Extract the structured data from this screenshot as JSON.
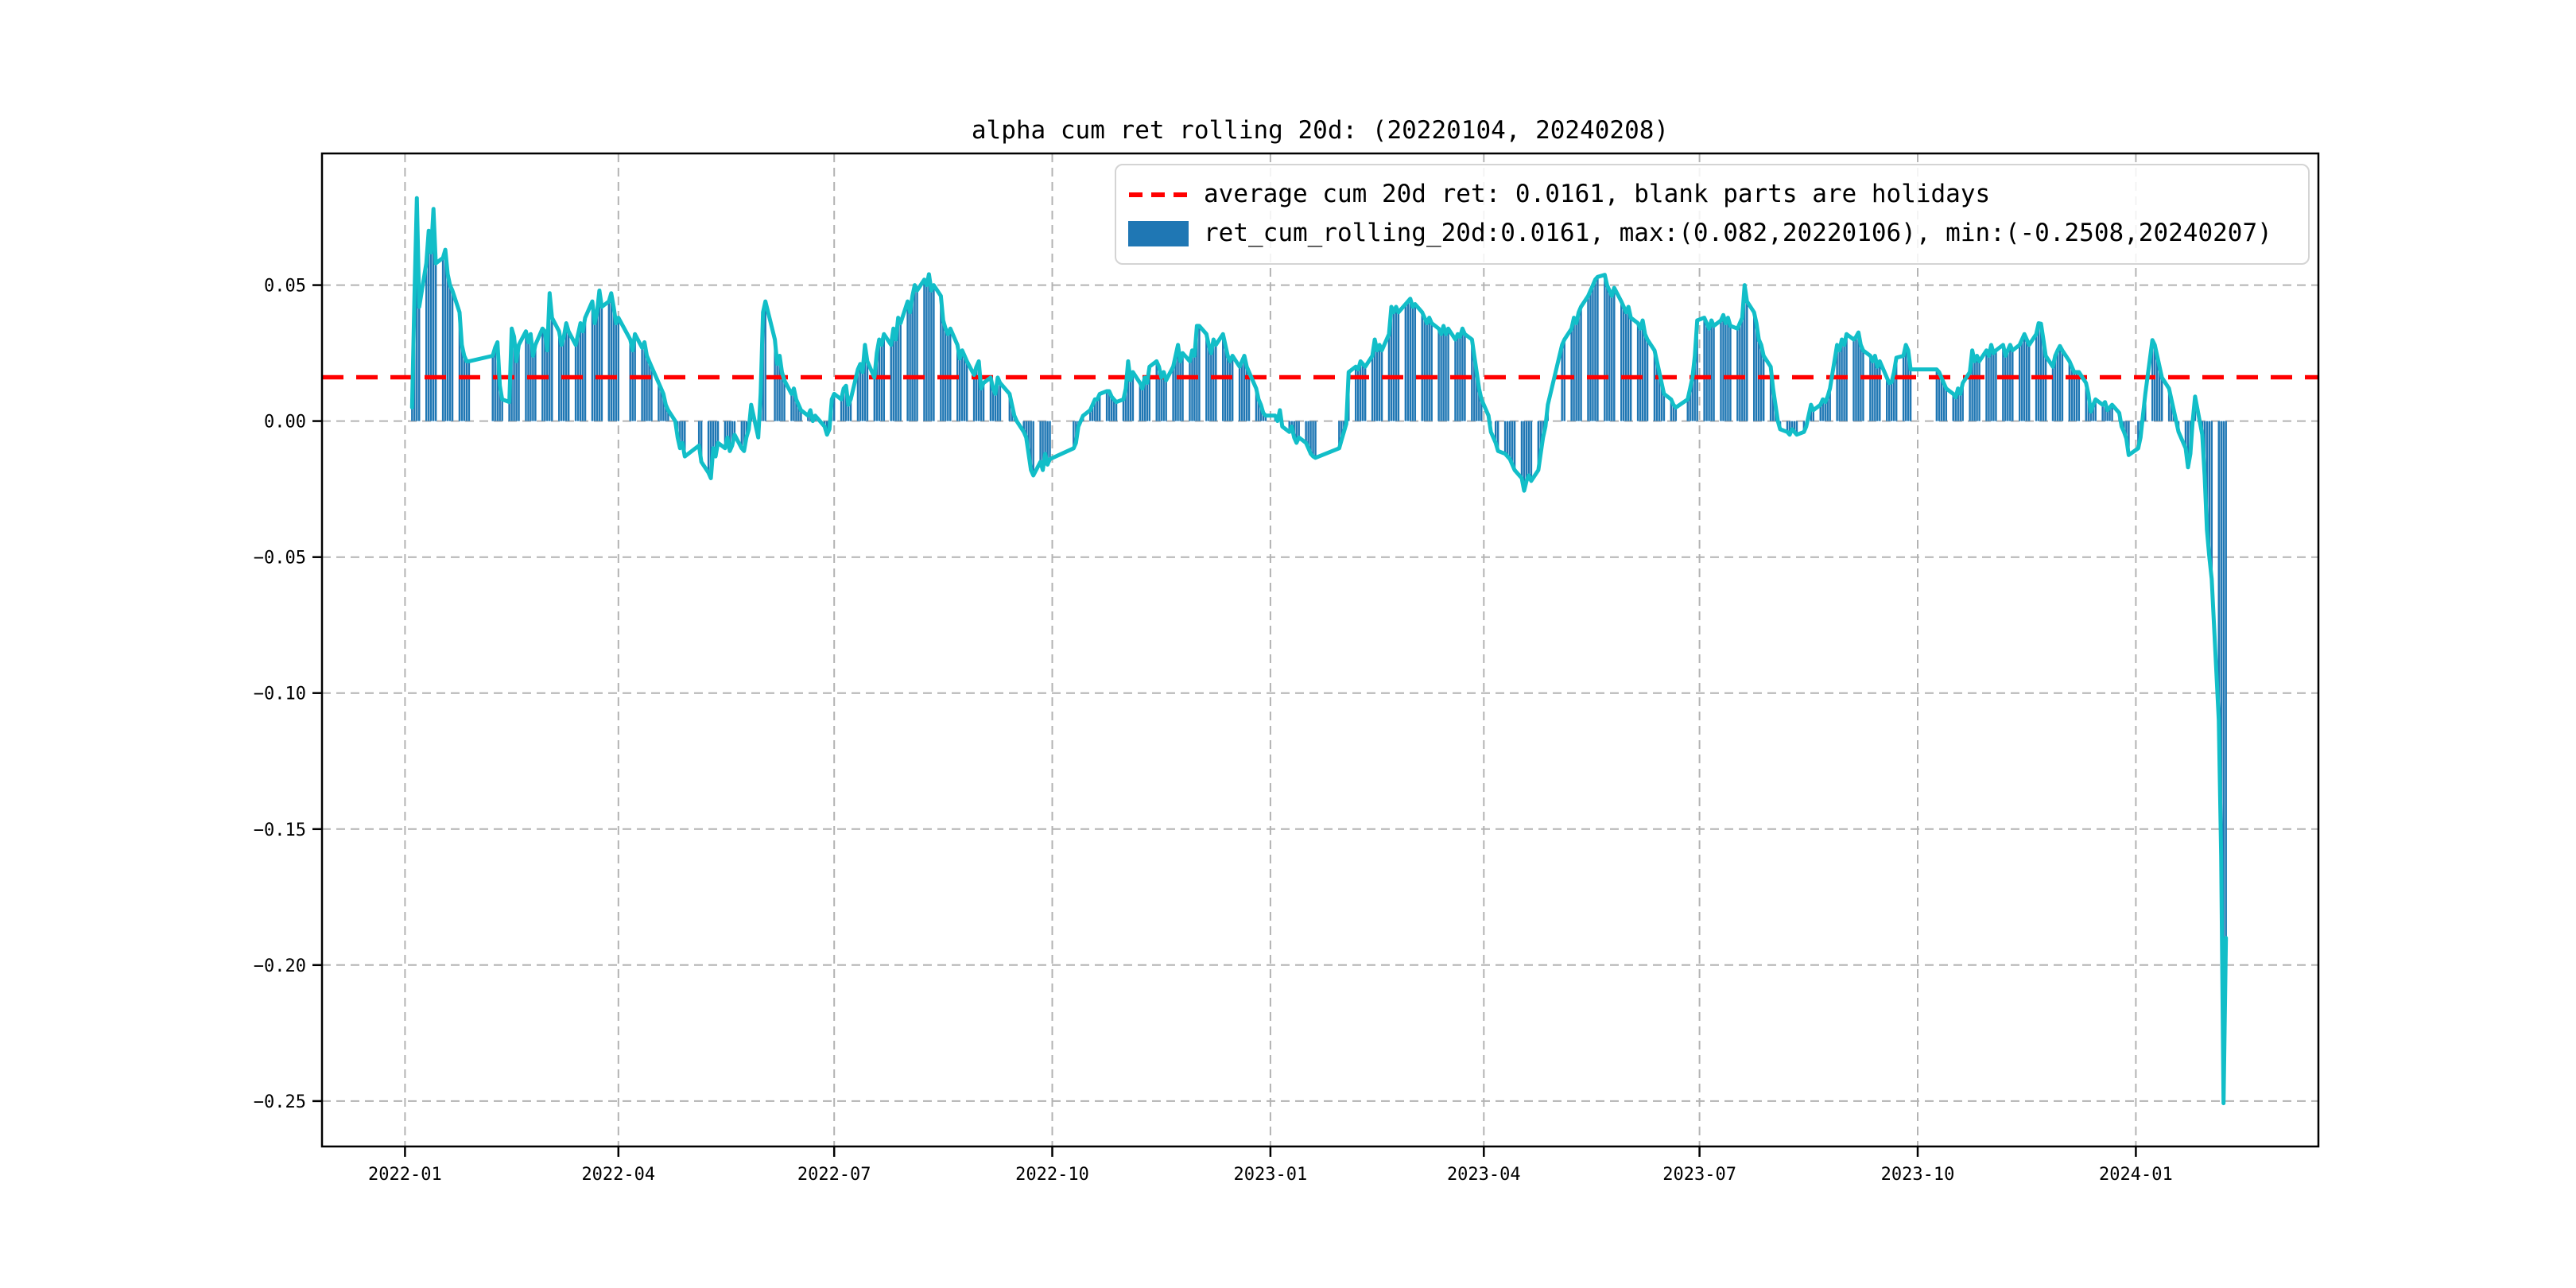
{
  "chart_data": {
    "type": "bar",
    "overlay": "line",
    "title": "alpha cum ret rolling 20d: (20220104, 20240208)",
    "legend_position": "upper right",
    "legend": [
      {
        "label": "average cum 20d ret: 0.0161, blank parts are holidays",
        "marker": "red-dashed-line",
        "color": "#ff0000"
      },
      {
        "label": "ret_cum_rolling_20d:0.0161, max:(0.082,20220106), min:(-0.2508,20240207)",
        "marker": "blue-bar",
        "color": "#1f77b4"
      }
    ],
    "series_name": "ret_cum_rolling_20d",
    "average_line": 0.0161,
    "stats": {
      "average": 0.0161,
      "max": {
        "value": 0.082,
        "date": "20220106"
      },
      "min": {
        "value": -0.2508,
        "date": "20240207"
      }
    },
    "date_range": {
      "start": "20220104",
      "end": "20240208"
    },
    "grid": true,
    "colors": {
      "bar": "#1f77b4",
      "line": "#12bec8",
      "average": "#ff0000",
      "grid": "#b3b3b3",
      "spine": "#000000"
    },
    "y_tick_labels": [
      "0.05",
      "0.00",
      "−0.05",
      "−0.10",
      "−0.15",
      "−0.20",
      "−0.25"
    ],
    "y_tick_values": [
      0.05,
      0.0,
      -0.05,
      -0.1,
      -0.15,
      -0.2,
      -0.25
    ],
    "x_tick_labels": [
      "2022-01",
      "2022-04",
      "2022-07",
      "2022-10",
      "2023-01",
      "2023-04",
      "2023-07",
      "2023-10",
      "2024-01"
    ],
    "x_tick_dates": [
      "2022-01-01",
      "2022-04-01",
      "2022-07-01",
      "2022-10-01",
      "2023-01-01",
      "2023-04-01",
      "2023-07-01",
      "2023-10-01",
      "2024-01-01"
    ],
    "y_range": [
      -0.2667,
      0.0984
    ],
    "x_range": [
      "2021-11-27",
      "2024-03-18"
    ],
    "trading": {
      "start": "2022-01-04",
      "end": "2024-02-08",
      "holidays": [
        "2022-01-31",
        "2022-02-01",
        "2022-02-02",
        "2022-02-03",
        "2022-02-04",
        "2022-04-04",
        "2022-04-05",
        "2022-05-02",
        "2022-05-03",
        "2022-05-04",
        "2022-06-03",
        "2022-09-12",
        "2022-10-03",
        "2022-10-04",
        "2022-10-05",
        "2022-10-06",
        "2022-10-07",
        "2023-01-02",
        "2023-01-23",
        "2023-01-24",
        "2023-01-25",
        "2023-01-26",
        "2023-01-27",
        "2023-04-05",
        "2023-05-01",
        "2023-05-02",
        "2023-05-03",
        "2023-06-22",
        "2023-06-23",
        "2023-09-29",
        "2023-10-02",
        "2023-10-03",
        "2023-10-04",
        "2023-10-05",
        "2023-10-06",
        "2024-01-01"
      ]
    },
    "series": {
      "2022-01": {
        "04": 0.005,
        "05": 0.046,
        "06": 0.082,
        "07": 0.042,
        "10": 0.058,
        "11": 0.07,
        "12": 0.062,
        "13": 0.078,
        "14": 0.058,
        "17": 0.06,
        "18": 0.063,
        "19": 0.054,
        "20": 0.05,
        "21": 0.048,
        "24": 0.04,
        "25": 0.028,
        "26": 0.024,
        "27": 0.022,
        "28": 0.022
      },
      "2022-02": {
        "07": 0.024,
        "08": 0.027,
        "09": 0.029,
        "10": 0.013,
        "11": 0.008,
        "14": 0.007,
        "15": 0.034,
        "16": 0.031,
        "17": 0.022,
        "18": 0.028,
        "21": 0.033,
        "22": 0.029,
        "23": 0.032,
        "24": 0.024,
        "25": 0.028,
        "28": 0.034
      },
      "2022-03": {
        "01": 0.033,
        "02": 0.026,
        "03": 0.047,
        "04": 0.038,
        "07": 0.033,
        "08": 0.028,
        "09": 0.031,
        "10": 0.036,
        "11": 0.033,
        "14": 0.028,
        "15": 0.032,
        "16": 0.036,
        "17": 0.033,
        "18": 0.038,
        "21": 0.044,
        "22": 0.036,
        "23": 0.04,
        "24": 0.048,
        "25": 0.042,
        "28": 0.044,
        "29": 0.047,
        "30": 0.042,
        "31": 0.036
      },
      "2022-04": {
        "01": 0.038,
        "06": 0.03,
        "07": 0.026,
        "08": 0.032,
        "11": 0.027,
        "12": 0.029,
        "13": 0.024,
        "14": 0.022,
        "15": 0.02,
        "18": 0.014,
        "19": 0.012,
        "20": 0.01,
        "21": 0.006,
        "22": 0.004,
        "25": 0.0,
        "26": -0.006,
        "27": -0.01,
        "28": -0.008,
        "29": -0.013
      },
      "2022-05": {
        "05": -0.009,
        "06": -0.015,
        "09": -0.019,
        "10": -0.021,
        "11": -0.01,
        "12": -0.013,
        "13": -0.008,
        "16": -0.01,
        "17": -0.006,
        "18": -0.011,
        "19": -0.009,
        "20": -0.005,
        "23": -0.01,
        "24": -0.011,
        "25": -0.006,
        "26": -0.003,
        "27": 0.006,
        "30": -0.006,
        "31": 0.01
      },
      "2022-06": {
        "01": 0.04,
        "02": 0.044,
        "06": 0.03,
        "07": 0.021,
        "08": 0.024,
        "09": 0.018,
        "10": 0.015,
        "13": 0.01,
        "14": 0.012,
        "15": 0.008,
        "16": 0.006,
        "17": 0.004,
        "20": 0.002,
        "21": 0.004,
        "22": 0.0,
        "23": 0.002,
        "24": 0.001,
        "27": -0.002,
        "28": -0.005,
        "29": -0.003,
        "30": 0.008
      },
      "2022-07": {
        "01": 0.01,
        "04": 0.008,
        "05": 0.012,
        "06": 0.013,
        "07": 0.006,
        "08": 0.008,
        "11": 0.019,
        "12": 0.021,
        "13": 0.018,
        "14": 0.028,
        "15": 0.022,
        "18": 0.016,
        "19": 0.025,
        "20": 0.03,
        "21": 0.028,
        "22": 0.032,
        "25": 0.028,
        "26": 0.034,
        "27": 0.03,
        "28": 0.038,
        "29": 0.036
      },
      "2022-08": {
        "01": 0.044,
        "02": 0.04,
        "03": 0.046,
        "04": 0.05,
        "05": 0.048,
        "08": 0.052,
        "09": 0.05,
        "10": 0.054,
        "11": 0.048,
        "12": 0.05,
        "15": 0.046,
        "16": 0.037,
        "17": 0.034,
        "18": 0.032,
        "19": 0.034,
        "22": 0.028,
        "23": 0.023,
        "24": 0.026,
        "25": 0.024,
        "26": 0.022,
        "29": 0.017,
        "30": 0.02,
        "31": 0.022
      },
      "2022-09": {
        "01": 0.012,
        "02": 0.014,
        "05": 0.016,
        "06": 0.012,
        "07": 0.01,
        "08": 0.016,
        "09": 0.014,
        "13": 0.01,
        "14": 0.006,
        "15": 0.002,
        "16": 0.0,
        "19": -0.004,
        "20": -0.006,
        "21": -0.012,
        "22": -0.018,
        "23": -0.02,
        "26": -0.015,
        "27": -0.018,
        "28": -0.012,
        "29": -0.016,
        "30": -0.014
      },
      "2022-10": {
        "10": -0.01,
        "11": -0.008,
        "12": -0.002,
        "13": 0.0,
        "14": 0.002,
        "17": 0.004,
        "18": 0.006,
        "19": 0.008,
        "20": 0.008,
        "21": 0.01,
        "24": 0.011,
        "25": 0.011,
        "26": 0.009,
        "27": 0.008,
        "28": 0.007,
        "31": 0.008
      },
      "2022-11": {
        "01": 0.012,
        "02": 0.022,
        "03": 0.015,
        "04": 0.018,
        "07": 0.014,
        "08": 0.012,
        "09": 0.016,
        "10": 0.014,
        "11": 0.02,
        "14": 0.022,
        "15": 0.02,
        "16": 0.016,
        "17": 0.018,
        "18": 0.015,
        "21": 0.02,
        "22": 0.024,
        "23": 0.028,
        "24": 0.022,
        "25": 0.025,
        "28": 0.022,
        "29": 0.026,
        "30": 0.024
      },
      "2022-12": {
        "01": 0.035,
        "02": 0.035,
        "05": 0.032,
        "06": 0.028,
        "07": 0.025,
        "08": 0.03,
        "09": 0.028,
        "12": 0.032,
        "13": 0.028,
        "14": 0.024,
        "15": 0.022,
        "16": 0.024,
        "19": 0.02,
        "20": 0.022,
        "21": 0.024,
        "22": 0.02,
        "23": 0.018,
        "26": 0.012,
        "27": 0.008,
        "28": 0.006,
        "29": 0.003,
        "30": 0.002
      },
      "2023-01": {
        "03": 0.002,
        "04": 0.0,
        "05": 0.004,
        "06": -0.002,
        "09": -0.004,
        "10": -0.002,
        "11": -0.006,
        "12": -0.008,
        "13": -0.006,
        "16": -0.008,
        "17": -0.01,
        "18": -0.012,
        "19": -0.013,
        "20": -0.0135,
        "30": -0.01,
        "31": -0.007
      },
      "2023-02": {
        "01": -0.004,
        "02": -0.001,
        "03": 0.018,
        "06": 0.02,
        "07": 0.019,
        "08": 0.022,
        "09": 0.021,
        "10": 0.02,
        "13": 0.024,
        "14": 0.03,
        "15": 0.026,
        "16": 0.028,
        "17": 0.026,
        "20": 0.032,
        "21": 0.042,
        "22": 0.04,
        "23": 0.042,
        "24": 0.04,
        "27": 0.043,
        "28": 0.044
      },
      "2023-03": {
        "01": 0.045,
        "02": 0.042,
        "03": 0.043,
        "06": 0.04,
        "07": 0.038,
        "08": 0.036,
        "09": 0.038,
        "10": 0.036,
        "13": 0.034,
        "14": 0.032,
        "15": 0.035,
        "16": 0.032,
        "17": 0.034,
        "20": 0.03,
        "21": 0.032,
        "22": 0.031,
        "23": 0.034,
        "24": 0.032,
        "27": 0.03,
        "28": 0.024,
        "29": 0.018,
        "30": 0.012,
        "31": 0.008
      },
      "2023-04": {
        "03": 0.002,
        "04": -0.004,
        "06": -0.008,
        "07": -0.011,
        "10": -0.012,
        "11": -0.013,
        "12": -0.014,
        "13": -0.016,
        "14": -0.018,
        "17": -0.021,
        "18": -0.0256,
        "19": -0.022,
        "20": -0.02,
        "21": -0.022,
        "24": -0.018,
        "25": -0.012,
        "26": -0.006,
        "27": -0.002,
        "28": 0.006
      },
      "2023-05": {
        "04": 0.028,
        "05": 0.03,
        "08": 0.034,
        "09": 0.038,
        "10": 0.036,
        "11": 0.04,
        "12": 0.042,
        "15": 0.046,
        "16": 0.048,
        "17": 0.05,
        "18": 0.052,
        "19": 0.053,
        "22": 0.0538,
        "23": 0.05,
        "24": 0.048,
        "25": 0.046,
        "26": 0.049,
        "29": 0.044,
        "30": 0.042,
        "31": 0.04
      },
      "2023-06": {
        "01": 0.042,
        "02": 0.038,
        "05": 0.036,
        "06": 0.034,
        "07": 0.037,
        "08": 0.032,
        "09": 0.03,
        "12": 0.026,
        "13": 0.022,
        "14": 0.018,
        "15": 0.014,
        "16": 0.01,
        "19": 0.008,
        "20": 0.006,
        "21": 0.005,
        "26": 0.008,
        "27": 0.012,
        "28": 0.016,
        "29": 0.024,
        "30": 0.037
      },
      "2023-07": {
        "03": 0.038,
        "04": 0.036,
        "05": 0.034,
        "06": 0.037,
        "07": 0.035,
        "10": 0.037,
        "11": 0.039,
        "12": 0.036,
        "13": 0.038,
        "14": 0.035,
        "17": 0.034,
        "18": 0.036,
        "19": 0.038,
        "20": 0.05,
        "21": 0.044,
        "24": 0.04,
        "25": 0.036,
        "26": 0.03,
        "27": 0.028,
        "28": 0.024,
        "31": 0.02
      },
      "2023-08": {
        "01": 0.012,
        "02": 0.006,
        "03": 0.0,
        "04": -0.003,
        "07": -0.004,
        "08": -0.005,
        "09": -0.003,
        "10": -0.004,
        "11": -0.005,
        "14": -0.004,
        "15": -0.002,
        "16": 0.002,
        "17": 0.006,
        "18": 0.004,
        "21": 0.006,
        "22": 0.008,
        "23": 0.007,
        "24": 0.009,
        "25": 0.012,
        "28": 0.028,
        "29": 0.026,
        "30": 0.03,
        "31": 0.028
      },
      "2023-09": {
        "01": 0.032,
        "04": 0.03,
        "05": 0.031,
        "06": 0.0326,
        "07": 0.028,
        "08": 0.026,
        "11": 0.024,
        "12": 0.022,
        "13": 0.024,
        "14": 0.02,
        "15": 0.022,
        "18": 0.016,
        "19": 0.014,
        "20": 0.0143,
        "21": 0.018,
        "22": 0.0233,
        "25": 0.024,
        "26": 0.028,
        "27": 0.026,
        "28": 0.019
      },
      "2023-10": {
        "09": 0.019,
        "10": 0.018,
        "11": 0.016,
        "12": 0.014,
        "13": 0.012,
        "16": 0.01,
        "17": 0.0087,
        "18": 0.012,
        "19": 0.01,
        "20": 0.014,
        "23": 0.018,
        "24": 0.026,
        "25": 0.022,
        "26": 0.024,
        "27": 0.022,
        "30": 0.026,
        "31": 0.024
      },
      "2023-11": {
        "01": 0.028,
        "02": 0.025,
        "03": 0.026,
        "06": 0.028,
        "07": 0.024,
        "08": 0.026,
        "09": 0.028,
        "10": 0.026,
        "13": 0.028,
        "14": 0.03,
        "15": 0.032,
        "16": 0.03,
        "17": 0.028,
        "20": 0.032,
        "21": 0.036,
        "22": 0.0358,
        "23": 0.03,
        "24": 0.024,
        "27": 0.02,
        "28": 0.024,
        "29": 0.026,
        "30": 0.0276
      },
      "2023-12": {
        "01": 0.026,
        "04": 0.022,
        "05": 0.02,
        "06": 0.018,
        "07": 0.018,
        "08": 0.018,
        "11": 0.014,
        "12": 0.01,
        "13": 0.0035,
        "14": 0.006,
        "15": 0.008,
        "18": 0.006,
        "19": 0.007,
        "20": 0.004,
        "21": 0.005,
        "22": 0.006,
        "25": 0.003,
        "26": -0.002,
        "27": -0.004,
        "28": -0.0064,
        "29": -0.0125
      },
      "2024-01": {
        "02": -0.01,
        "03": -0.006,
        "04": 0.002,
        "05": 0.01,
        "08": 0.0298,
        "09": 0.028,
        "10": 0.024,
        "11": 0.02,
        "12": 0.016,
        "15": 0.012,
        "16": 0.008,
        "17": 0.004,
        "18": 0.0,
        "19": -0.004,
        "22": -0.01,
        "23": -0.017,
        "24": -0.012,
        "25": 0.0,
        "26": 0.009,
        "29": -0.005,
        "30": -0.02,
        "31": -0.04
      },
      "2024-02": {
        "01": -0.05,
        "02": -0.058,
        "05": -0.11,
        "06": -0.16,
        "07": -0.2508,
        "08": -0.19
      }
    }
  }
}
